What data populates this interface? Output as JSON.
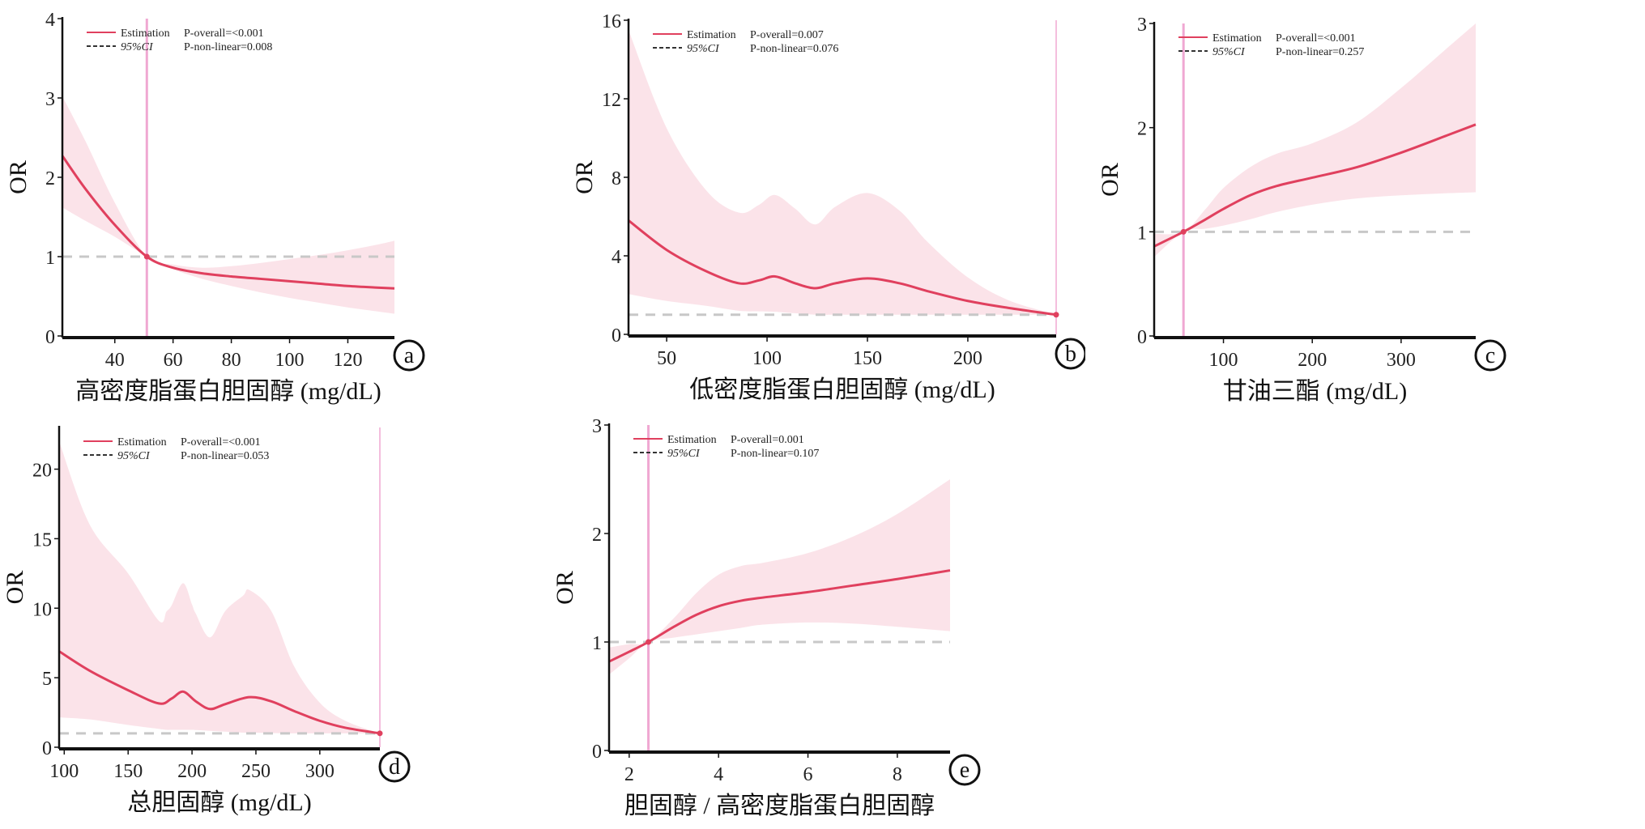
{
  "figure": {
    "colors": {
      "estimation": "#e0405e",
      "ci_band": "#fbe3e9",
      "reference_vertical": "#f0a8d2",
      "reference_horizontal": "#c8c8c8",
      "axis": "#111111"
    }
  },
  "chart_data": [
    {
      "id": "a",
      "type": "line",
      "panel_label": "a",
      "xlabel": "高密度脂蛋白胆固醇 (mg/dL)",
      "ylabel": "OR",
      "xlim": [
        22,
        136
      ],
      "ylim": [
        0,
        4
      ],
      "xticks": [
        40,
        60,
        80,
        100,
        120
      ],
      "yticks": [
        0,
        1,
        2,
        3,
        4
      ],
      "reference_x": 51,
      "reference_y": 1,
      "legend": {
        "estimation": "Estimation",
        "ci": "95%CI",
        "p_overall": "P-overall=<0.001",
        "p_nonlinear": "P-non-linear=0.008"
      },
      "series": [
        {
          "name": "Estimation",
          "x": [
            22,
            30,
            40,
            51,
            60,
            70,
            80,
            90,
            100,
            110,
            120,
            130,
            136
          ],
          "y": [
            2.27,
            1.85,
            1.4,
            1.0,
            0.86,
            0.79,
            0.75,
            0.72,
            0.69,
            0.66,
            0.63,
            0.61,
            0.6
          ]
        },
        {
          "name": "CI lower",
          "x": [
            22,
            30,
            40,
            51,
            60,
            70,
            80,
            90,
            100,
            110,
            120,
            130,
            136
          ],
          "y": [
            1.62,
            1.45,
            1.25,
            1.0,
            0.84,
            0.72,
            0.63,
            0.55,
            0.48,
            0.42,
            0.36,
            0.31,
            0.28
          ]
        },
        {
          "name": "CI upper",
          "x": [
            22,
            30,
            40,
            51,
            60,
            70,
            80,
            90,
            100,
            110,
            120,
            130,
            136
          ],
          "y": [
            3.02,
            2.45,
            1.68,
            1.0,
            0.9,
            0.86,
            0.88,
            0.92,
            0.97,
            1.02,
            1.08,
            1.15,
            1.2
          ]
        }
      ]
    },
    {
      "id": "b",
      "type": "line",
      "panel_label": "b",
      "xlabel": "低密度脂蛋白胆固醇 (mg/dL)",
      "ylabel": "OR",
      "xlim": [
        31,
        244
      ],
      "ylim": [
        0,
        16
      ],
      "xticks": [
        50,
        100,
        150,
        200
      ],
      "yticks": [
        0,
        4,
        8,
        12,
        16
      ],
      "reference_x": 244,
      "reference_y": 1,
      "legend": {
        "estimation": "Estimation",
        "ci": "95%CI",
        "p_overall": "P-overall=0.007",
        "p_nonlinear": "P-non-linear=0.076"
      },
      "series": [
        {
          "name": "Estimation",
          "x": [
            31,
            50,
            70,
            86,
            96,
            104,
            114,
            124,
            134,
            150,
            166,
            180,
            200,
            220,
            244
          ],
          "y": [
            5.8,
            4.3,
            3.2,
            2.6,
            2.75,
            2.95,
            2.6,
            2.35,
            2.6,
            2.85,
            2.6,
            2.2,
            1.7,
            1.35,
            1.0
          ]
        },
        {
          "name": "CI lower",
          "x": [
            31,
            50,
            70,
            86,
            104,
            124,
            150,
            180,
            200,
            220,
            244
          ],
          "y": [
            2.05,
            1.7,
            1.45,
            1.2,
            1.15,
            1.0,
            1.0,
            1.0,
            1.0,
            1.0,
            1.0
          ]
        },
        {
          "name": "CI upper",
          "x": [
            31,
            50,
            70,
            86,
            96,
            104,
            114,
            124,
            134,
            150,
            166,
            180,
            200,
            220,
            244
          ],
          "y": [
            15.5,
            10.5,
            7.3,
            6.2,
            6.6,
            7.1,
            6.4,
            5.6,
            6.5,
            7.2,
            6.3,
            4.7,
            2.9,
            1.75,
            1.0
          ]
        }
      ]
    },
    {
      "id": "c",
      "type": "line",
      "panel_label": "c",
      "xlabel": "甘油三酯 (mg/dL)",
      "ylabel": "OR",
      "xlim": [
        22,
        384
      ],
      "ylim": [
        0,
        3
      ],
      "xticks": [
        100,
        200,
        300
      ],
      "yticks": [
        0,
        1,
        2,
        3
      ],
      "reference_x": 55,
      "reference_y": 1,
      "legend": {
        "estimation": "Estimation",
        "ci": "95%CI",
        "p_overall": "P-overall=<0.001",
        "p_nonlinear": "P-non-linear=0.257"
      },
      "series": [
        {
          "name": "Estimation",
          "x": [
            22,
            55,
            80,
            100,
            130,
            160,
            200,
            250,
            300,
            350,
            384
          ],
          "y": [
            0.86,
            1.0,
            1.12,
            1.22,
            1.35,
            1.44,
            1.52,
            1.62,
            1.76,
            1.92,
            2.03
          ]
        },
        {
          "name": "CI lower",
          "x": [
            22,
            55,
            80,
            100,
            130,
            160,
            200,
            250,
            300,
            350,
            384
          ],
          "y": [
            0.76,
            1.0,
            1.03,
            1.06,
            1.12,
            1.19,
            1.26,
            1.32,
            1.35,
            1.37,
            1.38
          ]
        },
        {
          "name": "CI upper",
          "x": [
            22,
            55,
            80,
            100,
            130,
            160,
            200,
            250,
            300,
            350,
            384
          ],
          "y": [
            0.98,
            1.0,
            1.22,
            1.42,
            1.62,
            1.75,
            1.85,
            2.05,
            2.38,
            2.75,
            3.0
          ]
        }
      ]
    },
    {
      "id": "d",
      "type": "line",
      "panel_label": "d",
      "xlabel": "总胆固醇 (mg/dL)",
      "ylabel": "OR",
      "xlim": [
        96,
        347
      ],
      "ylim": [
        0,
        23
      ],
      "xticks": [
        100,
        150,
        200,
        250,
        300
      ],
      "yticks": [
        0,
        5,
        10,
        15,
        20
      ],
      "reference_x": 347,
      "reference_y": 1,
      "legend": {
        "estimation": "Estimation",
        "ci": "95%CI",
        "p_overall": "P-overall=<0.001",
        "p_nonlinear": "P-non-linear=0.053"
      },
      "series": [
        {
          "name": "Estimation",
          "x": [
            96,
            120,
            150,
            174,
            184,
            193,
            203,
            214,
            226,
            245,
            262,
            280,
            300,
            320,
            347
          ],
          "y": [
            6.9,
            5.5,
            4.1,
            3.15,
            3.5,
            4.0,
            3.3,
            2.75,
            3.1,
            3.6,
            3.3,
            2.6,
            1.9,
            1.4,
            1.0
          ]
        },
        {
          "name": "CI lower",
          "x": [
            96,
            120,
            150,
            180,
            200,
            240,
            280,
            320,
            347
          ],
          "y": [
            2.15,
            2.0,
            1.6,
            1.25,
            1.25,
            1.05,
            1.0,
            1.0,
            1.0
          ]
        },
        {
          "name": "CI upper",
          "x": [
            96,
            120,
            150,
            174,
            184,
            193,
            203,
            214,
            226,
            245,
            262,
            280,
            300,
            320,
            347
          ],
          "y": [
            22.0,
            16.0,
            12.5,
            9.1,
            10.2,
            11.8,
            9.6,
            7.9,
            9.8,
            11.3,
            9.8,
            5.8,
            3.2,
            1.9,
            1.0
          ]
        }
      ]
    },
    {
      "id": "e",
      "type": "line",
      "panel_label": "e",
      "xlabel": "胆固醇 / 高密度脂蛋白胆固醇",
      "ylabel": "OR",
      "xlim": [
        1.55,
        9.18
      ],
      "ylim": [
        0,
        3
      ],
      "xticks": [
        2,
        4,
        6,
        8
      ],
      "yticks": [
        0,
        1,
        2,
        3
      ],
      "reference_x": 2.43,
      "reference_y": 1,
      "legend": {
        "estimation": "Estimation",
        "ci": "95%CI",
        "p_overall": "P-overall=0.001",
        "p_nonlinear": "P-non-linear=0.107"
      },
      "series": [
        {
          "name": "Estimation",
          "x": [
            1.55,
            2.0,
            2.43,
            3.0,
            3.5,
            4.0,
            4.5,
            5.0,
            6.0,
            7.0,
            8.0,
            9.18
          ],
          "y": [
            0.82,
            0.91,
            1.0,
            1.14,
            1.25,
            1.33,
            1.38,
            1.41,
            1.46,
            1.52,
            1.58,
            1.66
          ]
        },
        {
          "name": "CI lower",
          "x": [
            1.55,
            2.0,
            2.43,
            3.0,
            3.5,
            4.0,
            4.5,
            5.0,
            6.0,
            7.0,
            8.0,
            9.18
          ],
          "y": [
            0.7,
            0.85,
            1.0,
            1.04,
            1.07,
            1.1,
            1.13,
            1.16,
            1.18,
            1.17,
            1.14,
            1.1
          ]
        },
        {
          "name": "CI upper",
          "x": [
            1.55,
            2.0,
            2.43,
            3.0,
            3.5,
            4.0,
            4.5,
            5.0,
            6.0,
            7.0,
            8.0,
            9.18
          ],
          "y": [
            0.95,
            0.98,
            1.0,
            1.22,
            1.45,
            1.62,
            1.7,
            1.73,
            1.82,
            1.97,
            2.18,
            2.5
          ]
        }
      ]
    }
  ]
}
